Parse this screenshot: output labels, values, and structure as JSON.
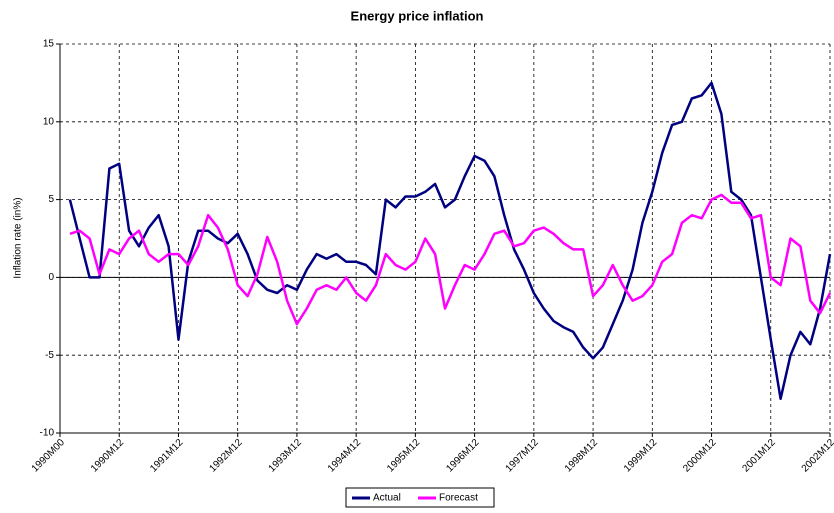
{
  "chart_data": {
    "type": "line",
    "title": "Energy price inflation",
    "y_label": "Inflation rate (in%)",
    "categories": [
      "1990M00",
      null,
      null,
      null,
      null,
      null,
      "1990M12",
      null,
      null,
      null,
      null,
      null,
      "1991M12",
      null,
      null,
      null,
      null,
      null,
      "1992M12",
      null,
      null,
      null,
      null,
      null,
      "1993M12",
      null,
      null,
      null,
      null,
      null,
      "1994M12",
      null,
      null,
      null,
      null,
      null,
      "1995M12",
      null,
      null,
      null,
      null,
      null,
      "1996M12",
      null,
      null,
      null,
      null,
      null,
      "1997M12",
      null,
      null,
      null,
      null,
      null,
      "1998M12",
      null,
      null,
      null,
      null,
      null,
      "1999M12",
      null,
      null,
      null,
      null,
      null,
      "2000M12",
      null,
      null,
      null,
      null,
      null,
      "2001M12",
      null,
      null,
      null,
      null,
      null,
      "2002M12"
    ],
    "series": [
      {
        "name": "Actual",
        "color": "#000080",
        "values": [
          null,
          5.0,
          2.5,
          0,
          0,
          7.0,
          7.3,
          3.0,
          2.0,
          3.2,
          4.0,
          2.0,
          -4.0,
          1.0,
          3.0,
          3.0,
          2.5,
          2.2,
          2.8,
          1.5,
          -0.2,
          -0.8,
          -1.0,
          -0.5,
          -0.8,
          0.5,
          1.5,
          1.2,
          1.5,
          1.0,
          1.0,
          0.8,
          0.2,
          5.0,
          4.5,
          5.2,
          5.2,
          5.5,
          6.0,
          4.5,
          5.0,
          6.5,
          7.8,
          7.5,
          6.5,
          4.0,
          1.8,
          0.5,
          -1.0,
          -2.0,
          -2.8,
          -3.2,
          -3.5,
          -4.5,
          -5.2,
          -4.5,
          -3.0,
          -1.5,
          0.5,
          3.5,
          5.5,
          8.0,
          9.8,
          10.0,
          11.5,
          11.7,
          12.5,
          10.5,
          5.5,
          5.0,
          4.0,
          0.0,
          -4.0,
          -7.8,
          -5.0,
          -3.5,
          -4.3,
          -2.0,
          1.5
        ]
      },
      {
        "name": "Forecast",
        "color": "#ff00ff",
        "values": [
          null,
          2.8,
          3.0,
          2.5,
          0.2,
          1.8,
          1.5,
          2.5,
          3.0,
          1.5,
          1.0,
          1.5,
          1.5,
          0.8,
          2.0,
          4.0,
          3.2,
          1.8,
          -0.5,
          -1.2,
          0.2,
          2.6,
          1.0,
          -1.5,
          -3.0,
          -2.0,
          -0.8,
          -0.5,
          -0.8,
          0.0,
          -1.0,
          -1.5,
          -0.5,
          1.5,
          0.8,
          0.5,
          1.0,
          2.5,
          1.5,
          -2.0,
          -0.5,
          0.8,
          0.5,
          1.5,
          2.8,
          3.0,
          2.0,
          2.2,
          3.0,
          3.2,
          2.8,
          2.2,
          1.8,
          1.8,
          -1.2,
          -0.5,
          0.8,
          -0.5,
          -1.5,
          -1.2,
          -0.5,
          1.0,
          1.5,
          3.5,
          4.0,
          3.8,
          5.0,
          5.3,
          4.8,
          4.8,
          3.8,
          4.0,
          0.0,
          -0.5,
          2.5,
          2.0,
          -1.5,
          -2.3,
          -1.0
        ]
      }
    ],
    "ylim": [
      -10,
      15
    ],
    "yticks": [
      -10,
      -5,
      0,
      5,
      10,
      15
    ],
    "grid": true,
    "legend": "bottom"
  }
}
